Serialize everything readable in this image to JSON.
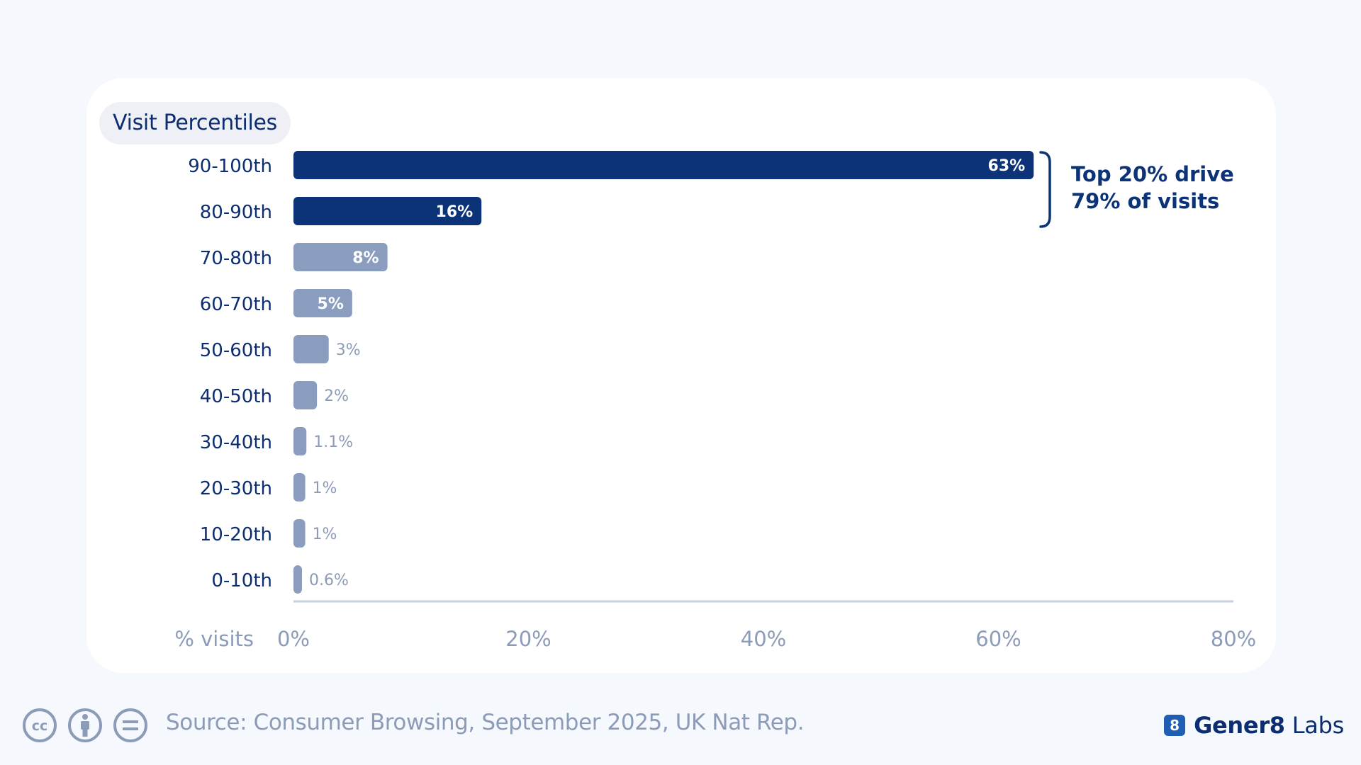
{
  "chart_data": {
    "type": "bar",
    "orientation": "horizontal",
    "title": "Visit Percentiles",
    "xlabel": "% visits",
    "categories": [
      "90-100th",
      "80-90th",
      "70-80th",
      "60-70th",
      "50-60th",
      "40-50th",
      "30-40th",
      "20-30th",
      "10-20th",
      "0-10th"
    ],
    "values": [
      63,
      16,
      8,
      5,
      3,
      2,
      1.1,
      1,
      1,
      0.6
    ],
    "value_labels": [
      "63%",
      "16%",
      "8%",
      "5%",
      "3%",
      "2%",
      "1.1%",
      "1%",
      "1%",
      "0.6%"
    ],
    "highlighted_categories": [
      "90-100th",
      "80-90th"
    ],
    "xlim": [
      0,
      80
    ],
    "x_ticks": [
      0,
      20,
      40,
      60,
      80
    ],
    "x_tick_labels": [
      "0%",
      "20%",
      "40%",
      "60%",
      "80%"
    ],
    "grid": false,
    "annotation": {
      "lines": [
        "Top 20% drive",
        "79% of visits"
      ],
      "spans": [
        "90-100th",
        "80-90th"
      ]
    },
    "colors": {
      "highlight": "#0c3277",
      "default": "#8a9dbe",
      "axis_text": "#8c9bb7",
      "category_text": "#0c2d70"
    }
  },
  "footer": {
    "source": "Source: Consumer Browsing, September 2025, UK Nat Rep.",
    "license_icons": [
      "cc-icon",
      "by-attribution-icon",
      "no-derivatives-icon"
    ],
    "brand_logo": "8",
    "brand_name": "Gener8",
    "brand_suffix": "Labs"
  }
}
